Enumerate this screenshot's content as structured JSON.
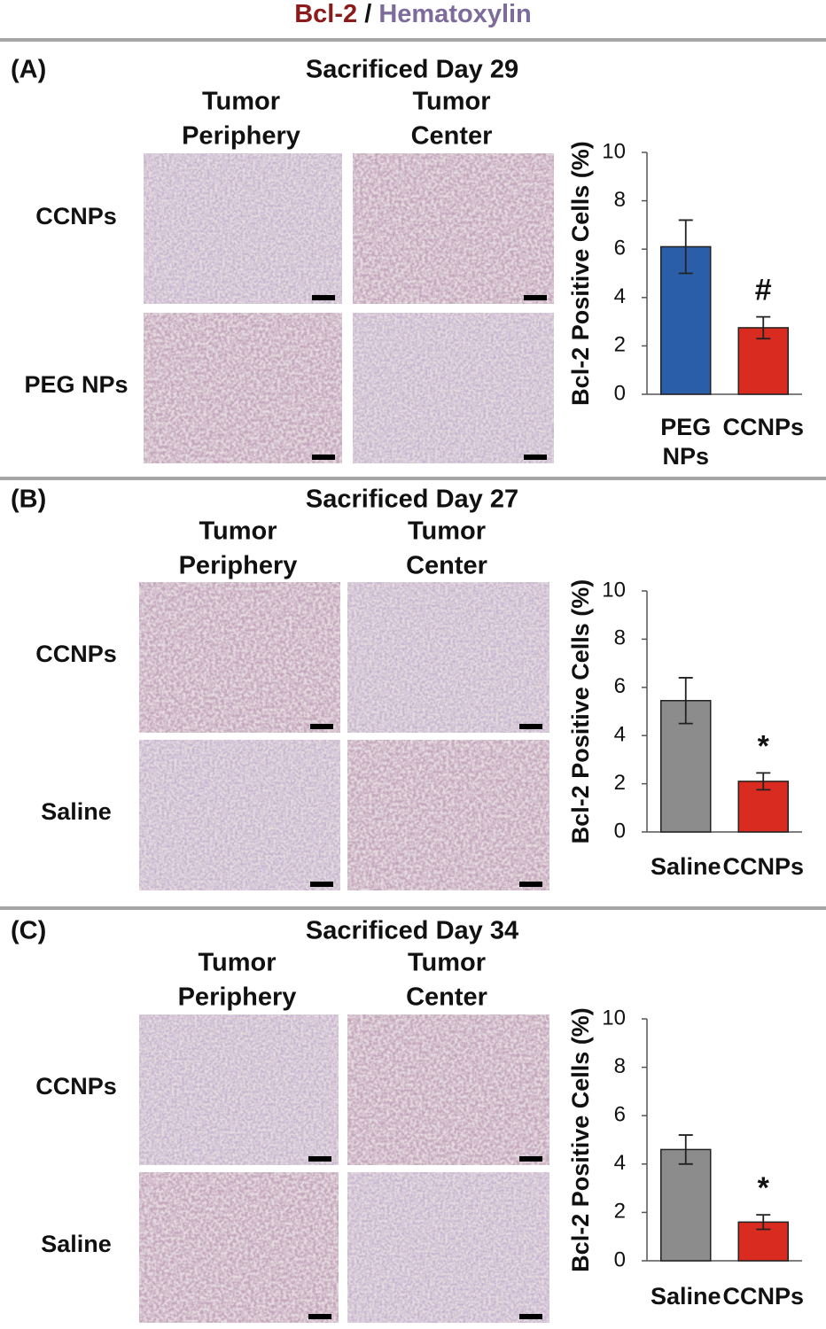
{
  "header": {
    "stain": "Bcl-2",
    "stain_color": "#8b1a1a",
    "separator": "/",
    "counterstain": "Hematoxylin",
    "counterstain_color": "#7d6b9c"
  },
  "chart_data": [
    {
      "type": "bar",
      "panel_label": "(A)",
      "title": "Sacrificed Day 29",
      "column_labels": [
        [
          "Tumor",
          "Periphery"
        ],
        [
          "Tumor",
          "Center"
        ]
      ],
      "row_labels": [
        "CCNPs",
        "PEG NPs"
      ],
      "ylabel": "Bcl-2 Positive Cells (%)",
      "categories": [
        "PEG NPs",
        "CCNPs"
      ],
      "values": [
        6.1,
        2.75
      ],
      "errors": [
        1.1,
        0.45
      ],
      "colors": [
        "#2b5ea8",
        "#d92b20"
      ],
      "significance": [
        null,
        "#"
      ],
      "ylim": [
        0,
        10
      ],
      "yticks": [
        0,
        2,
        4,
        6,
        8,
        10
      ],
      "grid": false
    },
    {
      "type": "bar",
      "panel_label": "(B)",
      "title": "Sacrificed Day 27",
      "column_labels": [
        [
          "Tumor",
          "Periphery"
        ],
        [
          "Tumor",
          "Center"
        ]
      ],
      "row_labels": [
        "CCNPs",
        "Saline"
      ],
      "ylabel": "Bcl-2 Positive Cells (%)",
      "categories": [
        "Saline",
        "CCNPs"
      ],
      "values": [
        5.45,
        2.1
      ],
      "errors": [
        0.95,
        0.35
      ],
      "colors": [
        "#8c8c8c",
        "#d92b20"
      ],
      "significance": [
        null,
        "*"
      ],
      "ylim": [
        0,
        10
      ],
      "yticks": [
        0,
        2,
        4,
        6,
        8,
        10
      ],
      "grid": false
    },
    {
      "type": "bar",
      "panel_label": "(C)",
      "title": "Sacrificed Day 34",
      "column_labels": [
        [
          "Tumor",
          "Periphery"
        ],
        [
          "Tumor",
          "Center"
        ]
      ],
      "row_labels": [
        "CCNPs",
        "Saline"
      ],
      "ylabel": "Bcl-2 Positive Cells (%)",
      "categories": [
        "Saline",
        "CCNPs"
      ],
      "values": [
        4.6,
        1.6
      ],
      "errors": [
        0.6,
        0.3
      ],
      "colors": [
        "#8c8c8c",
        "#d92b20"
      ],
      "significance": [
        null,
        "*"
      ],
      "ylim": [
        0,
        10
      ],
      "yticks": [
        0,
        2,
        4,
        6,
        8,
        10
      ],
      "grid": false
    }
  ]
}
